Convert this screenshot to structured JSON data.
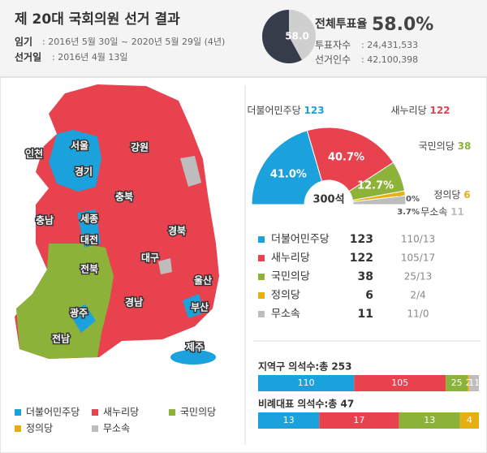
{
  "header": {
    "title": "제 20대 국회의원 선거 결과",
    "term_label": "임기",
    "term": ": 2016년 5월 30일 ~ 2020년 5월 29일 (4년)",
    "date_label": "선거일",
    "date": ": 2016년 4월 13일",
    "stats": [
      {
        "label": "투표자수",
        "value": ": 24,431,533"
      },
      {
        "label": "선거인수",
        "value": ": 42,100,398"
      }
    ]
  },
  "map": {
    "labels": [
      "서울",
      "인천",
      "경기",
      "강원",
      "충북",
      "충남",
      "세종",
      "대전",
      "경북",
      "대구",
      "전북",
      "울산",
      "경남",
      "광주",
      "부산",
      "전남",
      "제주"
    ]
  },
  "table": {
    "splits": [
      "110/13",
      "105/17",
      "25/13",
      "2/4",
      "11/0"
    ]
  },
  "chart_data": [
    {
      "type": "pie",
      "title": "전체투표율",
      "values": [
        58.0
      ],
      "value_labels": [
        "58.0"
      ],
      "headline": "58.0%",
      "color": "#363c4a",
      "rest_color": "#cfcfcf"
    },
    {
      "type": "donut",
      "semicircle": true,
      "categories": [
        "더불어민주당",
        "새누리당",
        "국민의당",
        "정의당",
        "무소속"
      ],
      "values": [
        41.0,
        40.7,
        12.7,
        2.0,
        3.7
      ],
      "value_labels": [
        "41.0%",
        "40.7%",
        "12.7%",
        "2.0%",
        "3.7%"
      ],
      "seats": [
        123,
        122,
        38,
        6,
        11
      ],
      "colors": [
        "#1ba1db",
        "#e8424f",
        "#8db23a",
        "#e6b012",
        "#bdbdbd"
      ],
      "center_label": "300석"
    },
    {
      "type": "stacked_bar",
      "orientation": "horizontal",
      "categories": [
        "지역구 의석수:총 253",
        "비례대표 의석수:총 47"
      ],
      "series": [
        {
          "name": "더불어민주당",
          "color": "#1ba1db",
          "values": [
            110,
            13
          ]
        },
        {
          "name": "새누리당",
          "color": "#e8424f",
          "values": [
            105,
            17
          ]
        },
        {
          "name": "국민의당",
          "color": "#8db23a",
          "values": [
            25,
            13
          ]
        },
        {
          "name": "정의당",
          "color": "#e6b012",
          "values": [
            2,
            4
          ]
        },
        {
          "name": "무소속",
          "color": "#bdbdbd",
          "values": [
            11,
            0
          ]
        }
      ]
    }
  ]
}
